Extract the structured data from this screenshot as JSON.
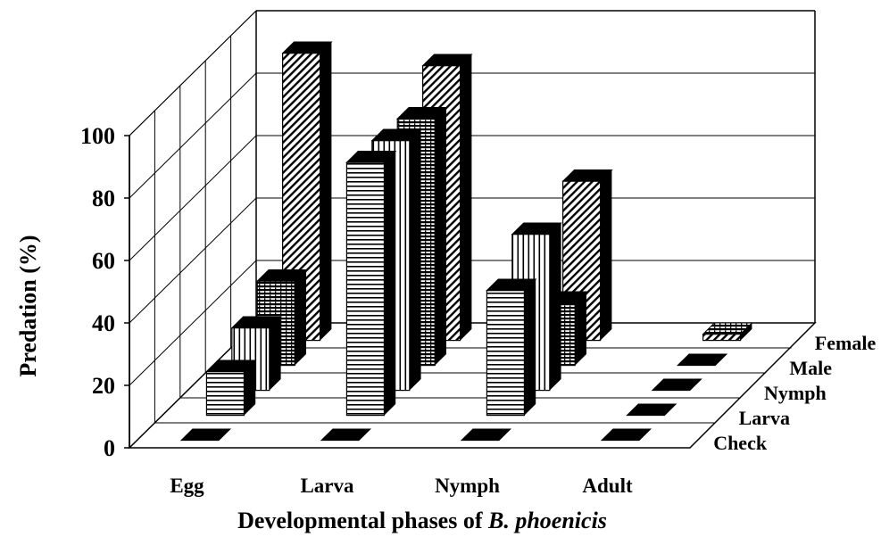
{
  "chart_data": {
    "type": "bar",
    "subtype": "3d-clustered",
    "ylabel": "Predation (%)",
    "xlabel_prefix": "Developmental phases of ",
    "xlabel_italic": "B. phoenicis",
    "ylim": [
      0,
      100
    ],
    "yticks": [
      0,
      20,
      40,
      60,
      80,
      100
    ],
    "categories": [
      "Egg",
      "Larva",
      "Nymph",
      "Adult"
    ],
    "series": [
      {
        "name": "Check",
        "values": [
          0,
          0,
          0,
          0
        ]
      },
      {
        "name": "Larva",
        "values": [
          14,
          81,
          40,
          0
        ]
      },
      {
        "name": "Nymph",
        "values": [
          20,
          80,
          50,
          0
        ]
      },
      {
        "name": "Male",
        "values": [
          27,
          79,
          20,
          0
        ]
      },
      {
        "name": "Female",
        "values": [
          92,
          88,
          51,
          2
        ]
      }
    ],
    "grid": true,
    "colors": {
      "ink": "#000000",
      "background": "#ffffff"
    }
  }
}
